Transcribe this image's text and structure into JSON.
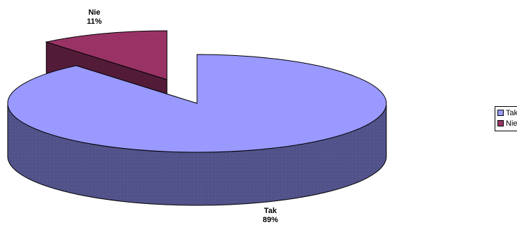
{
  "chart_data": {
    "type": "pie",
    "style": "3d-exploded",
    "categories": [
      "Tak",
      "Nie"
    ],
    "values": [
      89,
      11
    ],
    "data_labels": [
      {
        "name": "Tak",
        "percent": "89%"
      },
      {
        "name": "Nie",
        "percent": "11%"
      }
    ],
    "colors": [
      "#9999ff",
      "#993366"
    ],
    "side_colors": [
      "#4c4c80",
      "#4c1933"
    ],
    "legend": {
      "placement": "right",
      "items": [
        {
          "label": "Tak",
          "color": "#9999ff"
        },
        {
          "label": "Nie",
          "color": "#993366"
        }
      ]
    },
    "title": ""
  }
}
